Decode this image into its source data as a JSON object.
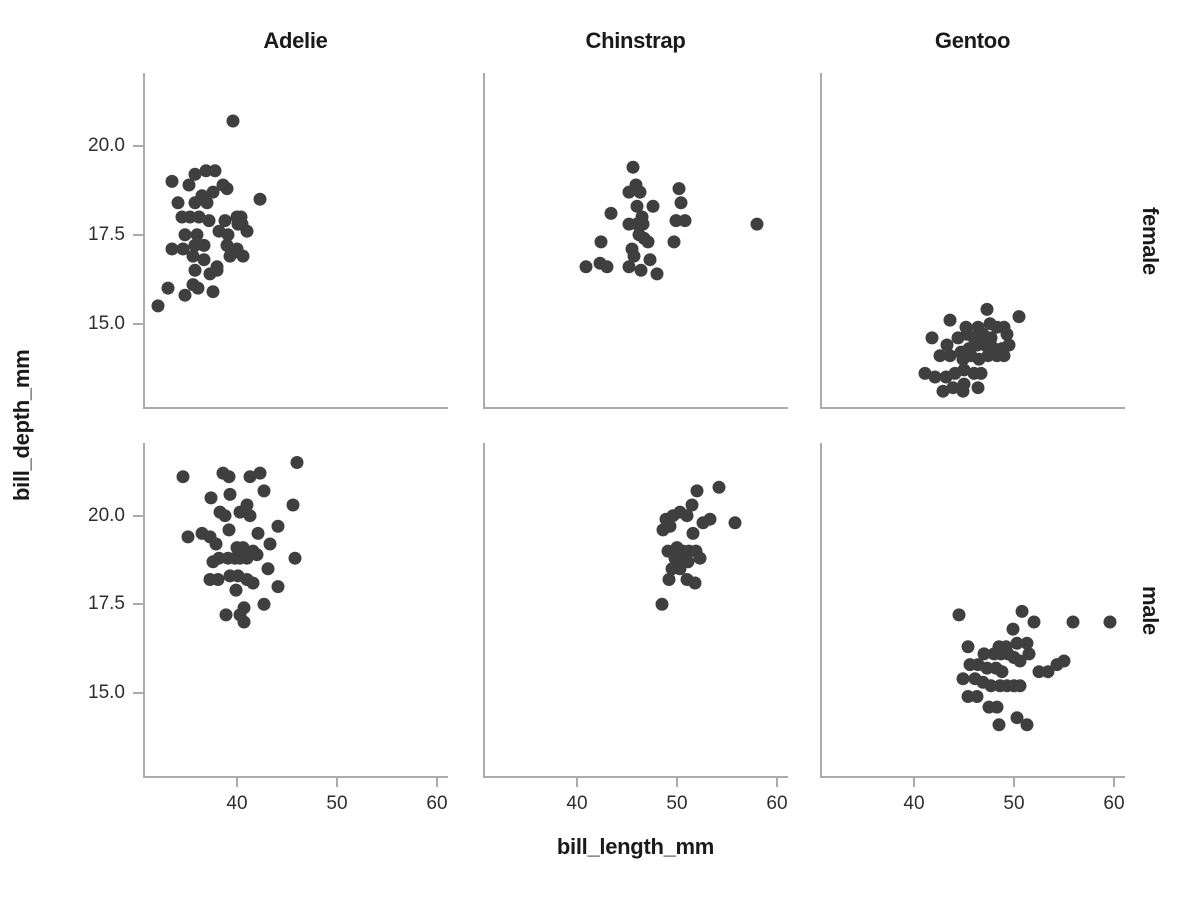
{
  "chart_data": {
    "type": "scatter",
    "title": "",
    "xlabel": "bill_length_mm",
    "ylabel": "bill_depth_mm",
    "col_facets": [
      "Adelie",
      "Chinstrap",
      "Gentoo"
    ],
    "row_facets": [
      "female",
      "male"
    ],
    "x_ticks": [
      40,
      50,
      60
    ],
    "y_ticks": [
      20.0,
      17.5,
      15.0
    ],
    "xlim": [
      30.6,
      61.1
    ],
    "ylim": [
      12.6,
      22.05
    ],
    "grid": false,
    "legend": "none",
    "style": {
      "point_color": "#3f3f3f",
      "axis_color": "#ababab",
      "label_color": "#1a1a1a",
      "tick_color": "#2e2e2e",
      "background": "#ffffff"
    },
    "panels": [
      {
        "species": "Adelie",
        "sex": "female",
        "points": [
          [
            39.6,
            20.7
          ],
          [
            35.8,
            19.2
          ],
          [
            36.9,
            19.3
          ],
          [
            37.8,
            19.3
          ],
          [
            33.5,
            19.0
          ],
          [
            35.2,
            18.9
          ],
          [
            38.6,
            18.9
          ],
          [
            39.0,
            18.8
          ],
          [
            36.5,
            18.6
          ],
          [
            37.6,
            18.7
          ],
          [
            42.3,
            18.5
          ],
          [
            34.1,
            18.4
          ],
          [
            35.8,
            18.4
          ],
          [
            37.0,
            18.4
          ],
          [
            34.5,
            18.0
          ],
          [
            35.3,
            18.0
          ],
          [
            36.2,
            18.0
          ],
          [
            37.2,
            17.9
          ],
          [
            38.8,
            17.9
          ],
          [
            40.0,
            18.0
          ],
          [
            40.4,
            18.0
          ],
          [
            40.5,
            17.8
          ],
          [
            34.8,
            17.5
          ],
          [
            36.0,
            17.5
          ],
          [
            38.2,
            17.6
          ],
          [
            39.1,
            17.5
          ],
          [
            41.0,
            17.6
          ],
          [
            40.1,
            17.8
          ],
          [
            33.5,
            17.1
          ],
          [
            34.6,
            17.1
          ],
          [
            35.8,
            17.2
          ],
          [
            36.7,
            17.2
          ],
          [
            39.0,
            17.2
          ],
          [
            40.0,
            17.1
          ],
          [
            35.6,
            16.9
          ],
          [
            36.7,
            16.8
          ],
          [
            38.0,
            16.6
          ],
          [
            39.3,
            16.9
          ],
          [
            40.6,
            16.9
          ],
          [
            35.8,
            16.5
          ],
          [
            37.3,
            16.4
          ],
          [
            38.0,
            16.5
          ],
          [
            39.6,
            17.0
          ],
          [
            33.1,
            16.0
          ],
          [
            35.6,
            16.1
          ],
          [
            36.1,
            16.0
          ],
          [
            34.8,
            15.8
          ],
          [
            37.6,
            15.9
          ],
          [
            32.1,
            15.5
          ]
        ]
      },
      {
        "species": "Chinstrap",
        "sex": "female",
        "points": [
          [
            45.6,
            19.4
          ],
          [
            45.9,
            18.9
          ],
          [
            45.2,
            18.7
          ],
          [
            46.3,
            18.7
          ],
          [
            50.2,
            18.8
          ],
          [
            50.4,
            18.4
          ],
          [
            47.6,
            18.3
          ],
          [
            46.0,
            18.3
          ],
          [
            43.4,
            18.1
          ],
          [
            46.5,
            18.0
          ],
          [
            45.2,
            17.8
          ],
          [
            46.0,
            17.8
          ],
          [
            46.6,
            17.8
          ],
          [
            49.9,
            17.9
          ],
          [
            50.8,
            17.9
          ],
          [
            58.0,
            17.8
          ],
          [
            46.2,
            17.5
          ],
          [
            46.7,
            17.4
          ],
          [
            42.4,
            17.3
          ],
          [
            47.1,
            17.3
          ],
          [
            49.7,
            17.3
          ],
          [
            45.5,
            17.1
          ],
          [
            45.7,
            16.9
          ],
          [
            40.9,
            16.6
          ],
          [
            42.3,
            16.7
          ],
          [
            43.0,
            16.6
          ],
          [
            45.2,
            16.6
          ],
          [
            46.4,
            16.5
          ],
          [
            47.3,
            16.8
          ],
          [
            48.0,
            16.4
          ]
        ]
      },
      {
        "species": "Gentoo",
        "sex": "female",
        "points": [
          [
            47.3,
            15.4
          ],
          [
            50.5,
            15.2
          ],
          [
            43.6,
            15.1
          ],
          [
            45.2,
            14.9
          ],
          [
            46.4,
            14.9
          ],
          [
            47.6,
            15.0
          ],
          [
            48.3,
            14.9
          ],
          [
            49.0,
            14.9
          ],
          [
            41.8,
            14.6
          ],
          [
            44.4,
            14.6
          ],
          [
            45.3,
            14.7
          ],
          [
            46.0,
            14.6
          ],
          [
            46.9,
            14.7
          ],
          [
            47.7,
            14.6
          ],
          [
            49.3,
            14.7
          ],
          [
            47.6,
            14.5
          ],
          [
            43.3,
            14.4
          ],
          [
            44.7,
            14.2
          ],
          [
            45.5,
            14.3
          ],
          [
            46.3,
            14.4
          ],
          [
            47.1,
            14.4
          ],
          [
            48.0,
            14.3
          ],
          [
            48.8,
            14.3
          ],
          [
            49.5,
            14.4
          ],
          [
            42.6,
            14.1
          ],
          [
            43.6,
            14.1
          ],
          [
            44.9,
            14.0
          ],
          [
            45.7,
            14.1
          ],
          [
            46.5,
            14.0
          ],
          [
            47.4,
            14.1
          ],
          [
            48.3,
            14.1
          ],
          [
            49.0,
            14.1
          ],
          [
            41.1,
            13.6
          ],
          [
            42.1,
            13.5
          ],
          [
            43.2,
            13.5
          ],
          [
            44.1,
            13.6
          ],
          [
            45.0,
            13.7
          ],
          [
            46.0,
            13.6
          ],
          [
            46.7,
            13.6
          ],
          [
            43.9,
            13.2
          ],
          [
            45.0,
            13.3
          ],
          [
            46.4,
            13.2
          ],
          [
            42.9,
            13.1
          ],
          [
            44.9,
            13.1
          ]
        ]
      },
      {
        "species": "Adelie",
        "sex": "male",
        "points": [
          [
            34.6,
            21.1
          ],
          [
            38.6,
            21.2
          ],
          [
            39.2,
            21.1
          ],
          [
            41.3,
            21.1
          ],
          [
            42.3,
            21.2
          ],
          [
            46.0,
            21.5
          ],
          [
            37.4,
            20.5
          ],
          [
            39.3,
            20.6
          ],
          [
            42.7,
            20.7
          ],
          [
            45.6,
            20.3
          ],
          [
            38.3,
            20.1
          ],
          [
            38.8,
            20.0
          ],
          [
            40.3,
            20.1
          ],
          [
            41.0,
            20.3
          ],
          [
            41.3,
            20.0
          ],
          [
            44.1,
            19.7
          ],
          [
            35.1,
            19.4
          ],
          [
            36.5,
            19.5
          ],
          [
            37.3,
            19.4
          ],
          [
            39.2,
            19.6
          ],
          [
            42.1,
            19.5
          ],
          [
            43.3,
            19.2
          ],
          [
            45.8,
            18.8
          ],
          [
            37.9,
            19.2
          ],
          [
            40.0,
            19.1
          ],
          [
            40.6,
            19.1
          ],
          [
            41.6,
            19.0
          ],
          [
            37.6,
            18.7
          ],
          [
            38.2,
            18.8
          ],
          [
            39.1,
            18.8
          ],
          [
            39.8,
            18.8
          ],
          [
            40.3,
            18.8
          ],
          [
            41.0,
            18.8
          ],
          [
            42.0,
            18.9
          ],
          [
            43.1,
            18.5
          ],
          [
            37.3,
            18.2
          ],
          [
            38.1,
            18.2
          ],
          [
            39.3,
            18.3
          ],
          [
            40.1,
            18.3
          ],
          [
            41.0,
            18.2
          ],
          [
            41.6,
            18.1
          ],
          [
            39.9,
            17.9
          ],
          [
            44.1,
            18.0
          ],
          [
            40.7,
            17.4
          ],
          [
            42.7,
            17.5
          ],
          [
            38.9,
            17.2
          ],
          [
            40.3,
            17.2
          ],
          [
            40.7,
            17.0
          ]
        ]
      },
      {
        "species": "Chinstrap",
        "sex": "male",
        "points": [
          [
            52.0,
            20.7
          ],
          [
            54.2,
            20.8
          ],
          [
            51.5,
            20.3
          ],
          [
            49.6,
            20.0
          ],
          [
            50.3,
            20.1
          ],
          [
            51.0,
            20.0
          ],
          [
            52.6,
            19.8
          ],
          [
            53.3,
            19.9
          ],
          [
            55.8,
            19.8
          ],
          [
            48.9,
            19.9
          ],
          [
            48.6,
            19.6
          ],
          [
            49.3,
            19.7
          ],
          [
            51.6,
            19.5
          ],
          [
            49.1,
            19.0
          ],
          [
            50.0,
            19.1
          ],
          [
            50.6,
            19.0
          ],
          [
            51.2,
            19.0
          ],
          [
            51.9,
            19.0
          ],
          [
            52.3,
            18.8
          ],
          [
            49.8,
            18.8
          ],
          [
            50.5,
            18.7
          ],
          [
            51.1,
            18.7
          ],
          [
            49.5,
            18.5
          ],
          [
            50.3,
            18.5
          ],
          [
            49.2,
            18.2
          ],
          [
            51.0,
            18.2
          ],
          [
            51.8,
            18.1
          ],
          [
            48.5,
            17.5
          ]
        ]
      },
      {
        "species": "Gentoo",
        "sex": "male",
        "points": [
          [
            44.5,
            17.2
          ],
          [
            50.8,
            17.3
          ],
          [
            52.0,
            17.0
          ],
          [
            55.9,
            17.0
          ],
          [
            59.6,
            17.0
          ],
          [
            49.9,
            16.8
          ],
          [
            45.4,
            16.3
          ],
          [
            48.5,
            16.3
          ],
          [
            49.2,
            16.3
          ],
          [
            50.3,
            16.4
          ],
          [
            51.3,
            16.4
          ],
          [
            47.0,
            16.1
          ],
          [
            48.0,
            16.1
          ],
          [
            48.7,
            16.1
          ],
          [
            49.4,
            16.1
          ],
          [
            50.0,
            16.0
          ],
          [
            50.6,
            15.9
          ],
          [
            45.6,
            15.8
          ],
          [
            46.4,
            15.8
          ],
          [
            47.3,
            15.7
          ],
          [
            48.2,
            15.7
          ],
          [
            48.8,
            15.6
          ],
          [
            51.5,
            16.1
          ],
          [
            52.5,
            15.6
          ],
          [
            53.4,
            15.6
          ],
          [
            54.3,
            15.8
          ],
          [
            55.0,
            15.9
          ],
          [
            44.9,
            15.4
          ],
          [
            46.1,
            15.4
          ],
          [
            46.9,
            15.3
          ],
          [
            47.7,
            15.2
          ],
          [
            48.6,
            15.2
          ],
          [
            49.3,
            15.2
          ],
          [
            50.0,
            15.2
          ],
          [
            50.6,
            15.2
          ],
          [
            45.4,
            14.9
          ],
          [
            46.3,
            14.9
          ],
          [
            47.5,
            14.6
          ],
          [
            48.3,
            14.6
          ],
          [
            50.3,
            14.3
          ],
          [
            51.3,
            14.1
          ],
          [
            48.5,
            14.1
          ]
        ]
      }
    ]
  }
}
